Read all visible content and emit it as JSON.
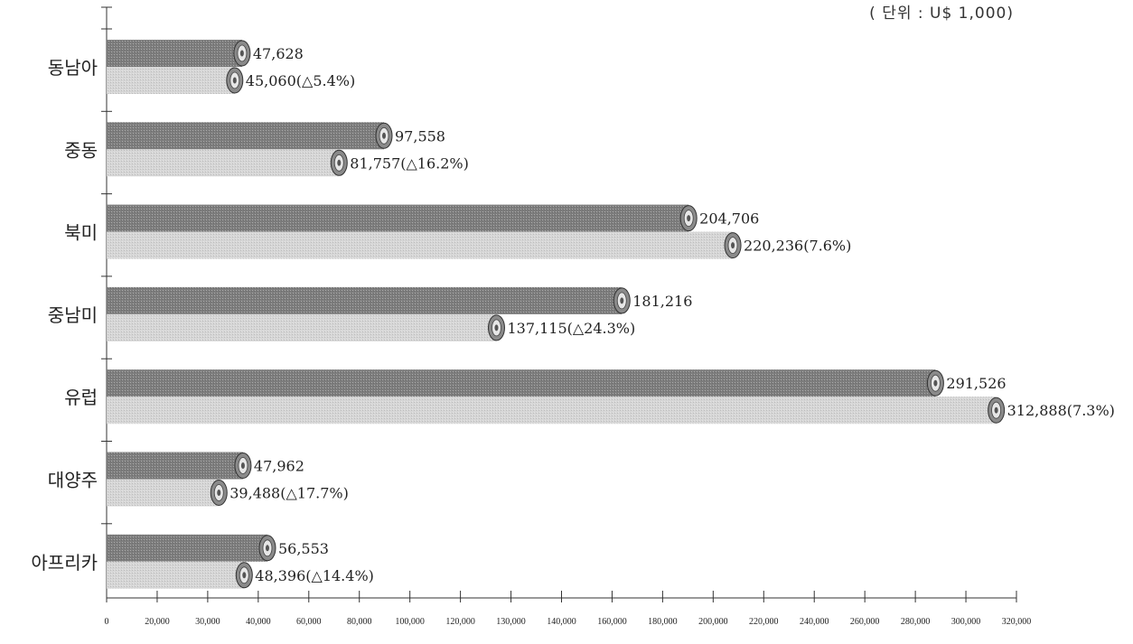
{
  "unit_note": "( 단위 : U$ 1,000)",
  "colors": {
    "series_a": "#7d7d7d",
    "series_b": "#d6d6d6",
    "axis": "#333333"
  },
  "chart_data": {
    "type": "bar",
    "orientation": "horizontal",
    "categories": [
      "동남아",
      "중동",
      "북미",
      "중남미",
      "유럽",
      "대양주",
      "아프리카"
    ],
    "series": [
      {
        "values": [
          47628,
          97558,
          204706,
          181216,
          291526,
          47962,
          56553
        ],
        "labels": [
          "47,628",
          "97,558",
          "204,706",
          "181,216",
          "291,526",
          "47,962",
          "56,553"
        ]
      },
      {
        "values": [
          45060,
          81757,
          220236,
          137115,
          312888,
          39488,
          48396
        ],
        "labels": [
          "45,060(△5.4%)",
          "81,757(△16.2%)",
          "220,236(7.6%)",
          "137,115(△24.3%)",
          "312,888(7.3%)",
          "39,488(△17.7%)",
          "48,396(△14.4%)"
        ]
      }
    ],
    "x_tick_labels": [
      "0",
      "20,000",
      "30,000",
      "40,000",
      "60,000",
      "80,000",
      "100,000",
      "120,000",
      "130,000",
      "140,000",
      "160,000",
      "180,000",
      "200,000",
      "220,000",
      "240,000",
      "260,000",
      "280,000",
      "300,000",
      "320,000"
    ],
    "xlim": [
      0,
      320000
    ],
    "grid": false,
    "legend": "none"
  }
}
